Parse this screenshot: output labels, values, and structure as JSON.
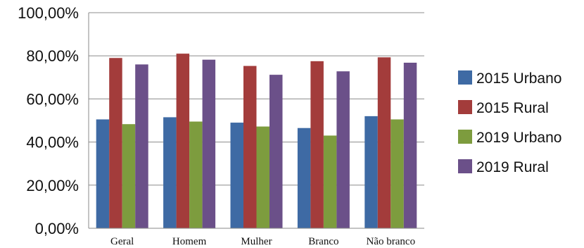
{
  "chart_data": {
    "type": "bar",
    "categories": [
      "Geral",
      "Homem",
      "Mulher",
      "Branco",
      "Não branco"
    ],
    "series": [
      {
        "name": "2015 Urbano",
        "values": [
          50.5,
          51.5,
          49.0,
          46.5,
          52.0
        ],
        "color": "#3e6aa4"
      },
      {
        "name": "2015 Rural",
        "values": [
          79.0,
          81.0,
          75.3,
          77.5,
          79.3
        ],
        "color": "#a33c3b"
      },
      {
        "name": "2019 Urbano",
        "values": [
          48.3,
          49.5,
          47.2,
          43.0,
          50.5
        ],
        "color": "#7d9c3e"
      },
      {
        "name": "2019 Rural",
        "values": [
          76.0,
          78.2,
          71.2,
          72.8,
          76.8
        ],
        "color": "#6b5089"
      }
    ],
    "y_ticks": [
      "0,00%",
      "20,00%",
      "40,00%",
      "60,00%",
      "80,00%",
      "100,00%"
    ],
    "ylim": [
      0,
      100
    ],
    "grid": true,
    "legend_position": "right"
  }
}
